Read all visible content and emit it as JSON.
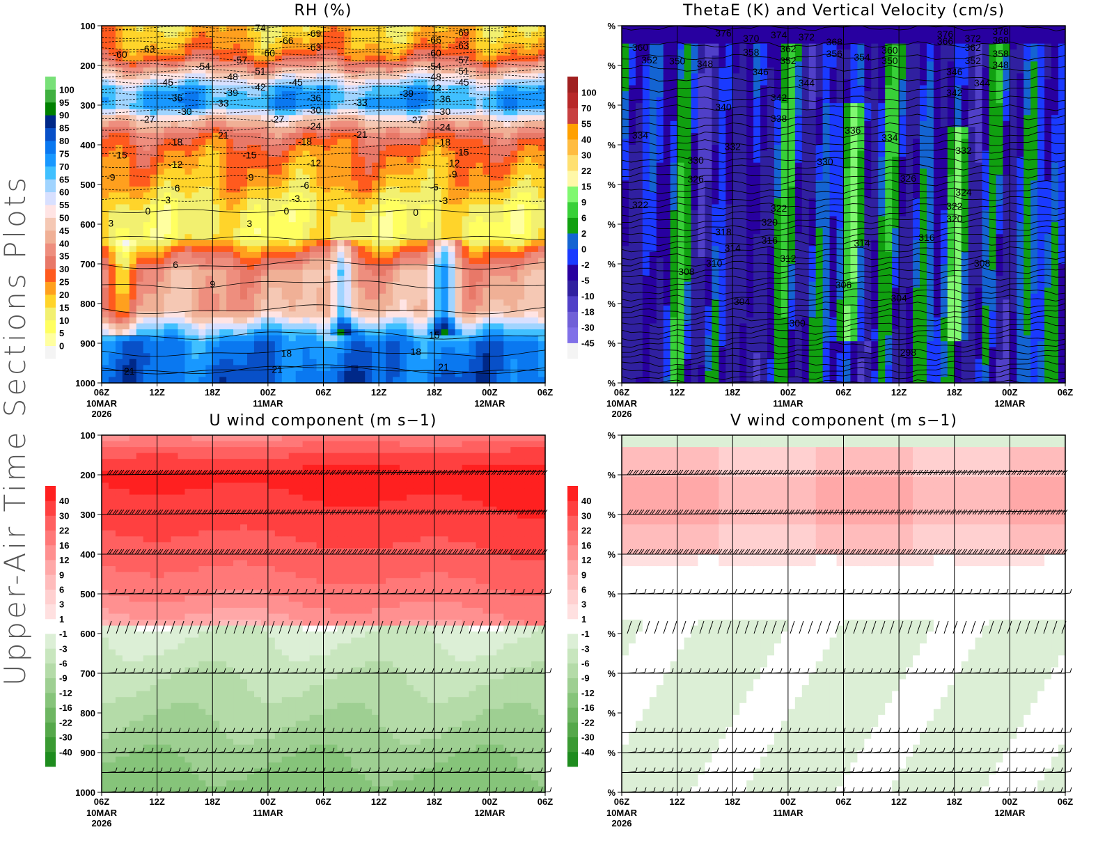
{
  "side_title": "Upper-Air Time Sections Plots",
  "chart_data": [
    {
      "id": "rh",
      "type": "heatmap",
      "title": "RH (%)",
      "x_ticks": [
        "06Z",
        "12Z",
        "18Z",
        "00Z",
        "06Z",
        "12Z",
        "18Z",
        "00Z",
        "06Z"
      ],
      "x_date_labels": {
        "0": [
          "10MAR",
          "2026"
        ],
        "3": [
          "11MAR"
        ],
        "7": [
          "12MAR"
        ]
      },
      "x_range": [
        "2026-03-10T06:00",
        "2026-03-12T06:00"
      ],
      "y_ticks": [
        "100",
        "200",
        "300",
        "400",
        "500",
        "600",
        "700",
        "800",
        "900",
        "1000"
      ],
      "ylim": [
        100,
        1000
      ],
      "y_inverted": true,
      "grid": "vertical lines at each time tick",
      "colorbar": {
        "labels": [
          "0",
          "5",
          "10",
          "15",
          "20",
          "25",
          "30",
          "35",
          "40",
          "45",
          "50",
          "55",
          "60",
          "65",
          "70",
          "75",
          "80",
          "85",
          "90",
          "95",
          "100"
        ],
        "levels": [
          0,
          5,
          10,
          15,
          20,
          25,
          30,
          35,
          40,
          45,
          50,
          55,
          60,
          65,
          70,
          75,
          80,
          85,
          90,
          95,
          100
        ],
        "colors": [
          "#f4f4f4",
          "#ffffa0",
          "#ffff60",
          "#f2f070",
          "#ffd42a",
          "#ffa01e",
          "#ff5a1e",
          "#e87868",
          "#ee8e7e",
          "#f0b096",
          "#f5c8b4",
          "#ffe4e4",
          "#d8e0ff",
          "#a0d4ff",
          "#40c0ff",
          "#1898ff",
          "#0a78f0",
          "#0850c8",
          "#002888",
          "#008000",
          "#40b040",
          "#78e078"
        ]
      },
      "contour_labels": [
        [
          "-60",
          "2026-03-10T08",
          172
        ],
        [
          "-63",
          "2026-03-10T11",
          158
        ],
        [
          "-74",
          "2026-03-10T23",
          105
        ],
        [
          "-66",
          "2026-03-11T02",
          137
        ],
        [
          "-69",
          "2026-03-11T05",
          119
        ],
        [
          "-63",
          "2026-03-11T05",
          154
        ],
        [
          "-57",
          "2026-03-10T21",
          186
        ],
        [
          "-60",
          "2026-03-11T00",
          168
        ],
        [
          "-54",
          "2026-03-10T17",
          202
        ],
        [
          "-51",
          "2026-03-10T23",
          214
        ],
        [
          "-48",
          "2026-03-10T20",
          228
        ],
        [
          "-45",
          "2026-03-10T13",
          242
        ],
        [
          "-42",
          "2026-03-10T23",
          254
        ],
        [
          "-45",
          "2026-03-11T03",
          242
        ],
        [
          "-39",
          "2026-03-10T20",
          268
        ],
        [
          "-36",
          "2026-03-10T14",
          282
        ],
        [
          "-33",
          "2026-03-10T19",
          295
        ],
        [
          "-30",
          "2026-03-10T15",
          316
        ],
        [
          "-36",
          "2026-03-11T05",
          282
        ],
        [
          "-30",
          "2026-03-11T05",
          312
        ],
        [
          "-33",
          "2026-03-11T10",
          293
        ],
        [
          "-39",
          "2026-03-11T15",
          270
        ],
        [
          "-27",
          "2026-03-10T11",
          335
        ],
        [
          "-27",
          "2026-03-11T01",
          335
        ],
        [
          "-24",
          "2026-03-11T05",
          353
        ],
        [
          "-27",
          "2026-03-11T16",
          337
        ],
        [
          "-21",
          "2026-03-10T19",
          375
        ],
        [
          "-21",
          "2026-03-11T10",
          374
        ],
        [
          "-18",
          "2026-03-10T14",
          393
        ],
        [
          "-18",
          "2026-03-11T04",
          391
        ],
        [
          "-15",
          "2026-03-10T08",
          425
        ],
        [
          "-15",
          "2026-03-10T22",
          425
        ],
        [
          "-12",
          "2026-03-10T14",
          449
        ],
        [
          "-12",
          "2026-03-11T05",
          446
        ],
        [
          "-9",
          "2026-03-10T07",
          482
        ],
        [
          "-9",
          "2026-03-10T22",
          482
        ],
        [
          "-6",
          "2026-03-10T14",
          509
        ],
        [
          "-6",
          "2026-03-11T04",
          502
        ],
        [
          "-3",
          "2026-03-10T13",
          539
        ],
        [
          "-3",
          "2026-03-11T03",
          535
        ],
        [
          "0",
          "2026-03-10T11",
          567
        ],
        [
          "0",
          "2026-03-11T02",
          567
        ],
        [
          "0",
          "2026-03-11T16",
          570
        ],
        [
          "3",
          "2026-03-10T07",
          597
        ],
        [
          "3",
          "2026-03-10T22",
          598
        ],
        [
          "6",
          "2026-03-10T14",
          702
        ],
        [
          "9",
          "2026-03-10T18",
          751
        ],
        [
          "15",
          "2026-03-11T18",
          879
        ],
        [
          "18",
          "2026-03-11T02",
          925
        ],
        [
          "18",
          "2026-03-11T16",
          921
        ],
        [
          "21",
          "2026-03-10T09",
          970
        ],
        [
          "21",
          "2026-03-11T01",
          966
        ],
        [
          "21",
          "2026-03-11T19",
          960
        ],
        [
          "-66",
          "2026-03-11T18",
          135
        ],
        [
          "-69",
          "2026-03-11T21",
          117
        ],
        [
          "-63",
          "2026-03-11T21",
          150
        ],
        [
          "-60",
          "2026-03-11T18",
          168
        ],
        [
          "-57",
          "2026-03-11T21",
          186
        ],
        [
          "-54",
          "2026-03-11T18",
          202
        ],
        [
          "-51",
          "2026-03-11T21",
          214
        ],
        [
          "-48",
          "2026-03-11T18",
          228
        ],
        [
          "-45",
          "2026-03-11T21",
          242
        ],
        [
          "-42",
          "2026-03-11T18",
          256
        ],
        [
          "-36",
          "2026-03-11T19",
          284
        ],
        [
          "-30",
          "2026-03-11T19",
          316
        ],
        [
          "-24",
          "2026-03-11T19",
          355
        ],
        [
          "-18",
          "2026-03-11T19",
          393
        ],
        [
          "-15",
          "2026-03-11T21",
          418
        ],
        [
          "-12",
          "2026-03-11T20",
          446
        ],
        [
          "-9",
          "2026-03-11T20",
          474
        ],
        [
          "-6",
          "2026-03-11T18",
          506
        ],
        [
          "-3",
          "2026-03-11T19",
          540
        ]
      ]
    },
    {
      "id": "thetae",
      "type": "heatmap",
      "title": "ThetaE (K) and Vertical Velocity (cm/s)",
      "x_ticks": [
        "06Z",
        "12Z",
        "18Z",
        "00Z",
        "06Z",
        "12Z",
        "18Z",
        "00Z",
        "06Z"
      ],
      "x_date_labels": {
        "0": [
          "10MAR",
          "2026"
        ],
        "3": [
          "11MAR"
        ],
        "7": [
          "12MAR"
        ]
      },
      "x_range": [
        "2026-03-10T06:00",
        "2026-03-12T06:00"
      ],
      "y_ticks": [
        "%",
        "%",
        "%",
        "%",
        "%",
        "%",
        "%",
        "%",
        "%",
        "%"
      ],
      "ylim": [
        100,
        1000
      ],
      "y_inverted": true,
      "grid": "vertical lines at each time tick",
      "colorbar": {
        "labels": [
          "-45",
          "-30",
          "-18",
          "-10",
          "-5",
          "-2",
          "0",
          "2",
          "6",
          "9",
          "15",
          "22",
          "30",
          "40",
          "55",
          "70",
          "100"
        ],
        "levels": [
          -45,
          -30,
          -18,
          -10,
          -5,
          -2,
          0,
          2,
          6,
          9,
          15,
          22,
          30,
          40,
          55,
          70,
          100
        ],
        "colors": [
          "#f4f4f4",
          "#8070e8",
          "#7060d8",
          "#5040c8",
          "#3020a0",
          "#2800a0",
          "#1a3aff",
          "#1464d2",
          "#10a010",
          "#38d038",
          "#80f870",
          "#fff8a8",
          "#ffe070",
          "#ffbc40",
          "#ffa000",
          "#c84040",
          "#b82828",
          "#a02020"
        ]
      },
      "contour_labels": [
        [
          "376",
          "2026-03-10T17",
          118
        ],
        [
          "370",
          "2026-03-10T20",
          132
        ],
        [
          "374",
          "2026-03-10T23",
          123
        ],
        [
          "372",
          "2026-03-11T02",
          128
        ],
        [
          "368",
          "2026-03-11T05",
          140
        ],
        [
          "360",
          "2026-03-10T08",
          154
        ],
        [
          "358",
          "2026-03-10T20",
          167
        ],
        [
          "362",
          "2026-03-11T00",
          158
        ],
        [
          "356",
          "2026-03-11T05",
          170
        ],
        [
          "354",
          "2026-03-11T08",
          179
        ],
        [
          "360",
          "2026-03-11T11",
          161
        ],
        [
          "350",
          "2026-03-11T11",
          188
        ],
        [
          "352",
          "2026-03-10T09",
          186
        ],
        [
          "350",
          "2026-03-10T12",
          189
        ],
        [
          "348",
          "2026-03-10T15",
          196
        ],
        [
          "352",
          "2026-03-11T00",
          188
        ],
        [
          "346",
          "2026-03-10T21",
          216
        ],
        [
          "344",
          "2026-03-11T02",
          244
        ],
        [
          "342",
          "2026-03-10T23",
          281
        ],
        [
          "340",
          "2026-03-10T17",
          304
        ],
        [
          "338",
          "2026-03-10T23",
          333
        ],
        [
          "336",
          "2026-03-11T07",
          363
        ],
        [
          "334",
          "2026-03-10T08",
          375
        ],
        [
          "334",
          "2026-03-11T11",
          382
        ],
        [
          "332",
          "2026-03-10T18",
          404
        ],
        [
          "330",
          "2026-03-10T14",
          439
        ],
        [
          "330",
          "2026-03-11T04",
          442
        ],
        [
          "326",
          "2026-03-10T14",
          486
        ],
        [
          "326",
          "2026-03-11T13",
          484
        ],
        [
          "324",
          "2026-03-11T19",
          519
        ],
        [
          "322",
          "2026-03-10T08",
          551
        ],
        [
          "322",
          "2026-03-10T23",
          560
        ],
        [
          "320",
          "2026-03-10T22",
          595
        ],
        [
          "318",
          "2026-03-10T17",
          619
        ],
        [
          "316",
          "2026-03-10T22",
          640
        ],
        [
          "314",
          "2026-03-10T18",
          660
        ],
        [
          "314",
          "2026-03-11T08",
          647
        ],
        [
          "312",
          "2026-03-11T00",
          686
        ],
        [
          "310",
          "2026-03-10T16",
          698
        ],
        [
          "308",
          "2026-03-10T13",
          719
        ],
        [
          "306",
          "2026-03-11T06",
          753
        ],
        [
          "304",
          "2026-03-10T19",
          795
        ],
        [
          "304",
          "2026-03-11T12",
          786
        ],
        [
          "300",
          "2026-03-11T01",
          849
        ],
        [
          "298",
          "2026-03-11T13",
          923
        ],
        [
          "376",
          "2026-03-11T17",
          121
        ],
        [
          "372",
          "2026-03-11T20",
          132
        ],
        [
          "378",
          "2026-03-11T23",
          114
        ],
        [
          "366",
          "2026-03-11T17",
          139
        ],
        [
          "362",
          "2026-03-11T20",
          154
        ],
        [
          "368",
          "2026-03-11T23",
          136
        ],
        [
          "358",
          "2026-03-11T23",
          170
        ],
        [
          "352",
          "2026-03-11T20",
          188
        ],
        [
          "348",
          "2026-03-11T23",
          198
        ],
        [
          "346",
          "2026-03-11T18",
          216
        ],
        [
          "342",
          "2026-03-11T18",
          268
        ],
        [
          "344",
          "2026-03-11T21",
          244
        ],
        [
          "332",
          "2026-03-11T19",
          414
        ],
        [
          "322",
          "2026-03-11T18",
          554
        ],
        [
          "320",
          "2026-03-11T18",
          586
        ],
        [
          "316",
          "2026-03-11T15",
          633
        ],
        [
          "308",
          "2026-03-11T21",
          698
        ]
      ]
    },
    {
      "id": "u",
      "type": "heatmap",
      "title": "U wind component (m s−1)",
      "x_ticks": [
        "06Z",
        "12Z",
        "18Z",
        "00Z",
        "06Z",
        "12Z",
        "18Z",
        "00Z",
        "06Z"
      ],
      "x_date_labels": {
        "0": [
          "10MAR",
          "2026"
        ],
        "3": [
          "11MAR"
        ],
        "7": [
          "12MAR"
        ]
      },
      "x_range": [
        "2026-03-10T06:00",
        "2026-03-12T06:00"
      ],
      "y_ticks": [
        "100",
        "200",
        "300",
        "400",
        "500",
        "600",
        "700",
        "800",
        "900",
        "1000"
      ],
      "ylim": [
        100,
        1000
      ],
      "y_inverted": true,
      "grid": "vertical lines at each time tick",
      "wind_barb_levels": [
        200,
        300,
        400,
        500,
        600,
        700,
        850,
        900,
        950,
        1000
      ],
      "colorbar": {
        "labels": [
          "-40",
          "-30",
          "-22",
          "-16",
          "-12",
          "-9",
          "-6",
          "-3",
          "-1",
          "1",
          "3",
          "6",
          "9",
          "12",
          "16",
          "22",
          "30",
          "40"
        ],
        "levels": [
          -40,
          -30,
          -22,
          -16,
          -12,
          -9,
          -6,
          -3,
          -1,
          1,
          3,
          6,
          9,
          12,
          16,
          22,
          30,
          40
        ],
        "colors": [
          "#1e8c1e",
          "#3a9a32",
          "#55a84a",
          "#6eb662",
          "#86c47a",
          "#9ecf92",
          "#b4dba8",
          "#c8e6be",
          "#dcefd6",
          "#ffffff",
          "#ffe0e0",
          "#ffd0d0",
          "#ffbcbc",
          "#ffa8a8",
          "#ff9090",
          "#ff7878",
          "#ff6060",
          "#ff4040",
          "#ff2020"
        ]
      },
      "contour_labels": []
    },
    {
      "id": "v",
      "type": "heatmap",
      "title": "V wind component (m s−1)",
      "x_ticks": [
        "06Z",
        "12Z",
        "18Z",
        "00Z",
        "06Z",
        "12Z",
        "18Z",
        "00Z",
        "06Z"
      ],
      "x_date_labels": {
        "0": [
          "10MAR",
          "2026"
        ],
        "3": [
          "11MAR"
        ],
        "7": [
          "12MAR"
        ]
      },
      "x_range": [
        "2026-03-10T06:00",
        "2026-03-12T06:00"
      ],
      "y_ticks": [
        "%",
        "%",
        "%",
        "%",
        "%",
        "%",
        "%",
        "%",
        "%",
        "%"
      ],
      "ylim": [
        100,
        1000
      ],
      "y_inverted": true,
      "grid": "vertical lines at each time tick",
      "wind_barb_levels": [
        200,
        300,
        400,
        500,
        600,
        700,
        850,
        900,
        950,
        1000
      ],
      "colorbar": {
        "labels": [
          "-40",
          "-30",
          "-22",
          "-16",
          "-12",
          "-9",
          "-6",
          "-3",
          "-1",
          "1",
          "3",
          "6",
          "9",
          "12",
          "16",
          "22",
          "30",
          "40"
        ],
        "levels": [
          -40,
          -30,
          -22,
          -16,
          -12,
          -9,
          -6,
          -3,
          -1,
          1,
          3,
          6,
          9,
          12,
          16,
          22,
          30,
          40
        ],
        "colors": [
          "#1e8c1e",
          "#3a9a32",
          "#55a84a",
          "#6eb662",
          "#86c47a",
          "#9ecf92",
          "#b4dba8",
          "#c8e6be",
          "#dcefd6",
          "#ffffff",
          "#ffe0e0",
          "#ffd0d0",
          "#ffbcbc",
          "#ffa8a8",
          "#ff9090",
          "#ff7878",
          "#ff6060",
          "#ff4040",
          "#ff2020"
        ]
      },
      "contour_labels": []
    }
  ]
}
